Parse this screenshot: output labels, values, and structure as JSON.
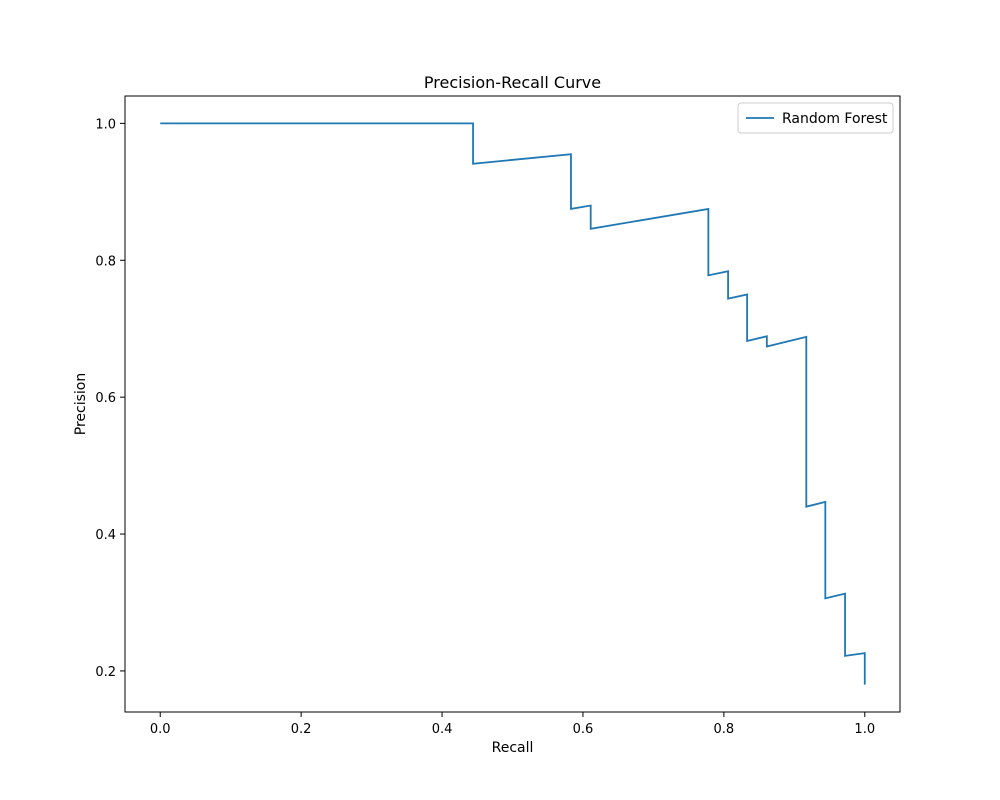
{
  "chart_data": {
    "type": "line",
    "title": "Precision-Recall Curve",
    "xlabel": "Recall",
    "ylabel": "Precision",
    "xlim": [
      -0.05,
      1.05
    ],
    "ylim": [
      0.14,
      1.04
    ],
    "xticks": [
      0.0,
      0.2,
      0.4,
      0.6,
      0.8,
      1.0
    ],
    "xtick_labels": [
      "0.0",
      "0.2",
      "0.4",
      "0.6",
      "0.8",
      "1.0"
    ],
    "yticks": [
      0.2,
      0.4,
      0.6,
      0.8,
      1.0
    ],
    "ytick_labels": [
      "0.2",
      "0.4",
      "0.6",
      "0.8",
      "1.0"
    ],
    "grid": false,
    "legend_position": "upper right",
    "series": [
      {
        "name": "Random Forest",
        "color": "#1f77b4",
        "x": [
          0.0,
          0.444,
          0.444,
          0.583,
          0.583,
          0.611,
          0.611,
          0.778,
          0.778,
          0.806,
          0.806,
          0.833,
          0.833,
          0.861,
          0.861,
          0.917,
          0.917,
          0.944,
          0.944,
          0.972,
          0.972,
          1.0,
          1.0
        ],
        "y": [
          1.0,
          1.0,
          0.941,
          0.955,
          0.875,
          0.88,
          0.846,
          0.875,
          0.778,
          0.784,
          0.744,
          0.75,
          0.682,
          0.689,
          0.674,
          0.688,
          0.44,
          0.447,
          0.306,
          0.313,
          0.222,
          0.226,
          0.18
        ]
      }
    ]
  }
}
